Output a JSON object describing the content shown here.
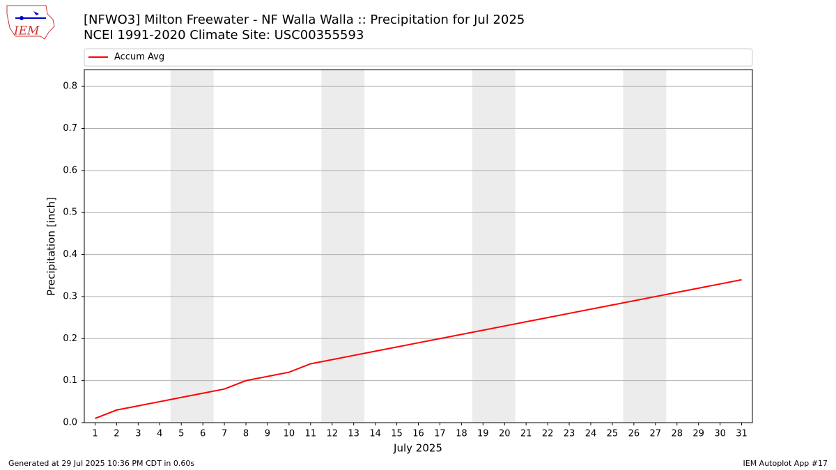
{
  "logo_text": "IEM",
  "footer": {
    "left": "Generated at 29 Jul 2025 10:36 PM CDT in 0.60s",
    "right": "IEM Autoplot App #17"
  },
  "chart_data": {
    "type": "line",
    "title": "[NFWO3] Milton Freewater - NF Walla Walla :: Precipitation for Jul 2025",
    "subtitle": "NCEI 1991-2020 Climate Site: USC00355593",
    "x_label": "July 2025",
    "y_label": "Precipitation [inch]",
    "x": [
      1,
      2,
      3,
      4,
      5,
      6,
      7,
      8,
      9,
      10,
      11,
      12,
      13,
      14,
      15,
      16,
      17,
      18,
      19,
      20,
      21,
      22,
      23,
      24,
      25,
      26,
      27,
      28,
      29,
      30,
      31
    ],
    "series": [
      {
        "name": "Accum Avg",
        "color": "#ff0000",
        "values": [
          0.01,
          0.03,
          0.04,
          0.05,
          0.06,
          0.07,
          0.08,
          0.1,
          0.11,
          0.12,
          0.14,
          0.15,
          0.16,
          0.17,
          0.18,
          0.19,
          0.2,
          0.21,
          0.22,
          0.23,
          0.24,
          0.25,
          0.26,
          0.27,
          0.28,
          0.29,
          0.3,
          0.31,
          0.32,
          0.33,
          0.34
        ]
      }
    ],
    "shaded_ranges": [
      [
        4.5,
        6.5
      ],
      [
        11.5,
        13.5
      ],
      [
        18.5,
        20.5
      ],
      [
        25.5,
        27.5
      ]
    ],
    "shade_color": "#ececec",
    "xlim": [
      0.5,
      31.5
    ],
    "xticks": [
      1,
      2,
      3,
      4,
      5,
      6,
      7,
      8,
      9,
      10,
      11,
      12,
      13,
      14,
      15,
      16,
      17,
      18,
      19,
      20,
      21,
      22,
      23,
      24,
      25,
      26,
      27,
      28,
      29,
      30,
      31
    ],
    "ylim": [
      0,
      0.84
    ],
    "yticks": [
      {
        "value": 0,
        "label": "0.0"
      },
      0.1,
      0.2,
      0.3,
      0.4,
      0.5,
      0.6,
      0.7,
      0.8
    ],
    "grid": true,
    "legend": "top"
  }
}
